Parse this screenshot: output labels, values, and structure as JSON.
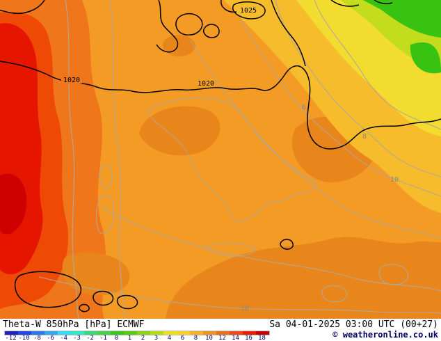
{
  "map": {
    "colors": {
      "base_orange": "#f49b25",
      "dark_orange": "#e8861c",
      "deeper_orange": "#f0761c",
      "red_orange": "#ee4a05",
      "red": "#e51500",
      "dark_red": "#cf0000",
      "yellow_orange": "#f6bc2c",
      "yellow": "#f2dc30",
      "yellow_green": "#c3dc1e",
      "green": "#38c312",
      "contour_black": "#000000",
      "contour_gray": "#b3a795"
    },
    "pressure_labels": [
      {
        "text": "1025"
      },
      {
        "text": "1020"
      },
      {
        "text": "1020"
      }
    ],
    "thetaw_labels": [
      {
        "text": "6"
      },
      {
        "text": "8"
      },
      {
        "text": "10"
      },
      {
        "text": "10"
      }
    ]
  },
  "footer": {
    "title": "Theta-W 850hPa [hPa] ECMWF",
    "datetime": "Sa 04-01-2025 03:00 UTC (00+27)",
    "copyright": "© weatheronline.co.uk"
  },
  "colorbar": {
    "ticks": [
      "-12",
      "-10",
      "-8",
      "-6",
      "-4",
      "-3",
      "-2",
      "-1",
      "0",
      "1",
      "2",
      "3",
      "4",
      "6",
      "8",
      "10",
      "12",
      "14",
      "16",
      "18"
    ],
    "colors": [
      "#2020c0",
      "#2048e8",
      "#2878f0",
      "#30a8f8",
      "#38d8f8",
      "#30e8c8",
      "#38d878",
      "#48d048",
      "#38c814",
      "#58cc10",
      "#88d410",
      "#b8dc14",
      "#e8e020",
      "#f8d028",
      "#f8b028",
      "#f09020",
      "#e87018",
      "#f04810",
      "#e82000",
      "#c80000"
    ]
  }
}
